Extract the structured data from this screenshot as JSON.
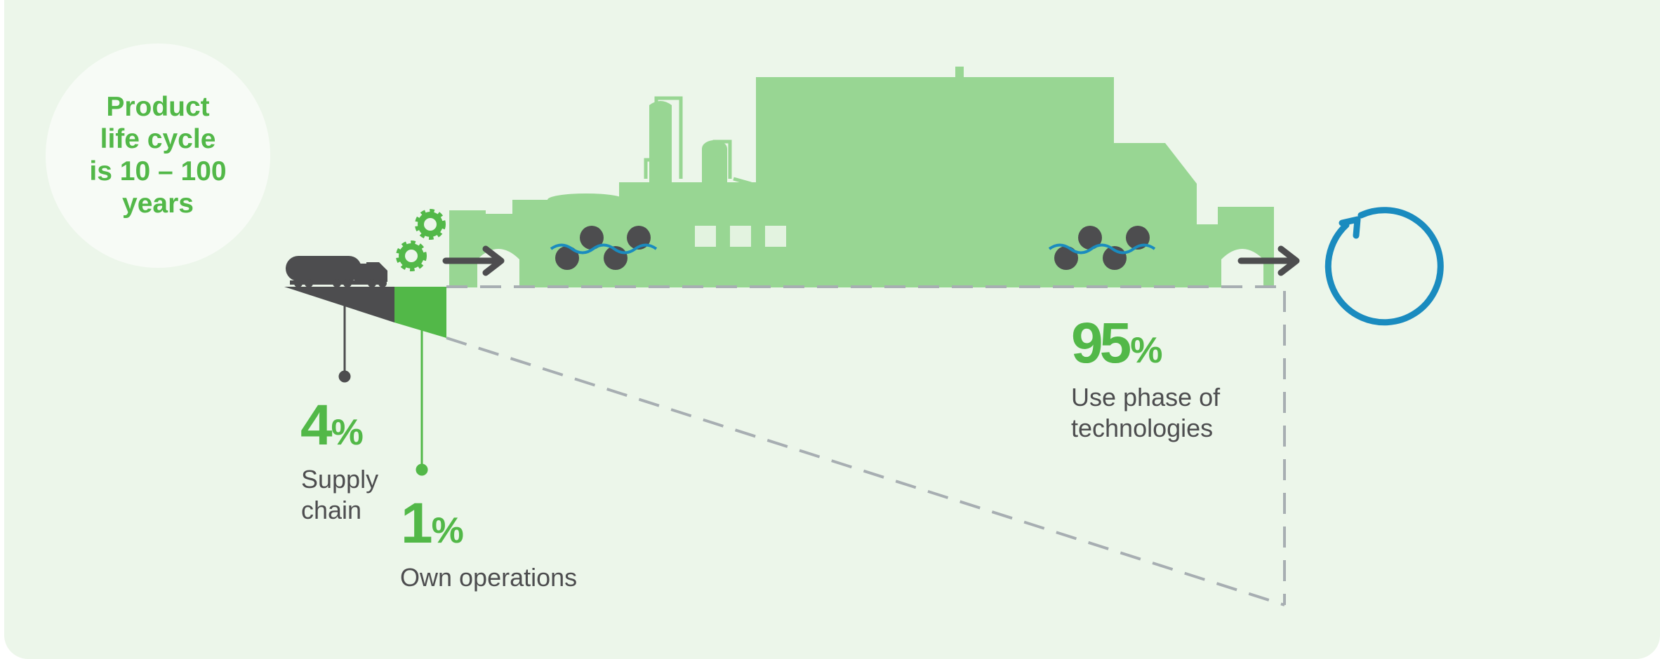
{
  "info_circle": {
    "lines": [
      "Product",
      "life cycle",
      "is 10 – 100",
      "years"
    ]
  },
  "stats": [
    {
      "id": "supply",
      "value": "4",
      "unit": "%",
      "label_lines": [
        "Supply",
        "chain"
      ]
    },
    {
      "id": "own",
      "value": "1",
      "unit": "%",
      "label_lines": [
        "Own operations"
      ]
    },
    {
      "id": "use",
      "value": "95",
      "unit": "%",
      "label_lines": [
        "Use phase of",
        "technologies"
      ]
    }
  ],
  "icons": [
    "truck-icon",
    "gears-icon",
    "arrow-right-icon",
    "factory-icon",
    "water-wheel-icon",
    "recycle-arrow-icon"
  ],
  "colors": {
    "background": "#ecf6ea",
    "green": "#52b848",
    "light_green": "#98d693",
    "dark_gray": "#4d4d4f",
    "dash_gray": "#a7aeb2",
    "blue": "#1a8bbf"
  }
}
